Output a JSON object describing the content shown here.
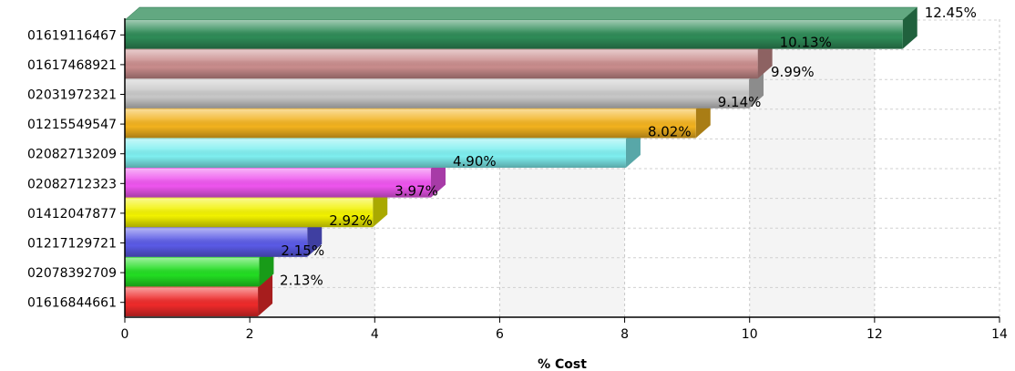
{
  "chart_data": {
    "type": "bar",
    "orientation": "horizontal",
    "categories": [
      "01619116467",
      "01617468921",
      "02031972321",
      "01215549547",
      "02082713209",
      "02082712323",
      "01412047877",
      "01217129721",
      "02078392709",
      "01616844661"
    ],
    "values": [
      12.45,
      10.13,
      9.99,
      9.14,
      8.02,
      4.9,
      3.97,
      2.92,
      2.15,
      2.13
    ],
    "value_labels": [
      "12.45%",
      "10.13%",
      "9.99%",
      "9.14%",
      "8.02%",
      "4.90%",
      "3.97%",
      "2.92%",
      "2.15%",
      "2.13%"
    ],
    "colors": [
      "#2E8B57",
      "#C98C8C",
      "#C8C8C8",
      "#F2B21E",
      "#7EEFF0",
      "#EE55EE",
      "#F2F200",
      "#5A5AE6",
      "#22DD22",
      "#EE2A2A"
    ],
    "xlabel": "% Cost",
    "xlim": [
      0,
      14
    ],
    "xticks": [
      "0",
      "2",
      "4",
      "6",
      "8",
      "10",
      "12",
      "14"
    ],
    "grid": true
  }
}
